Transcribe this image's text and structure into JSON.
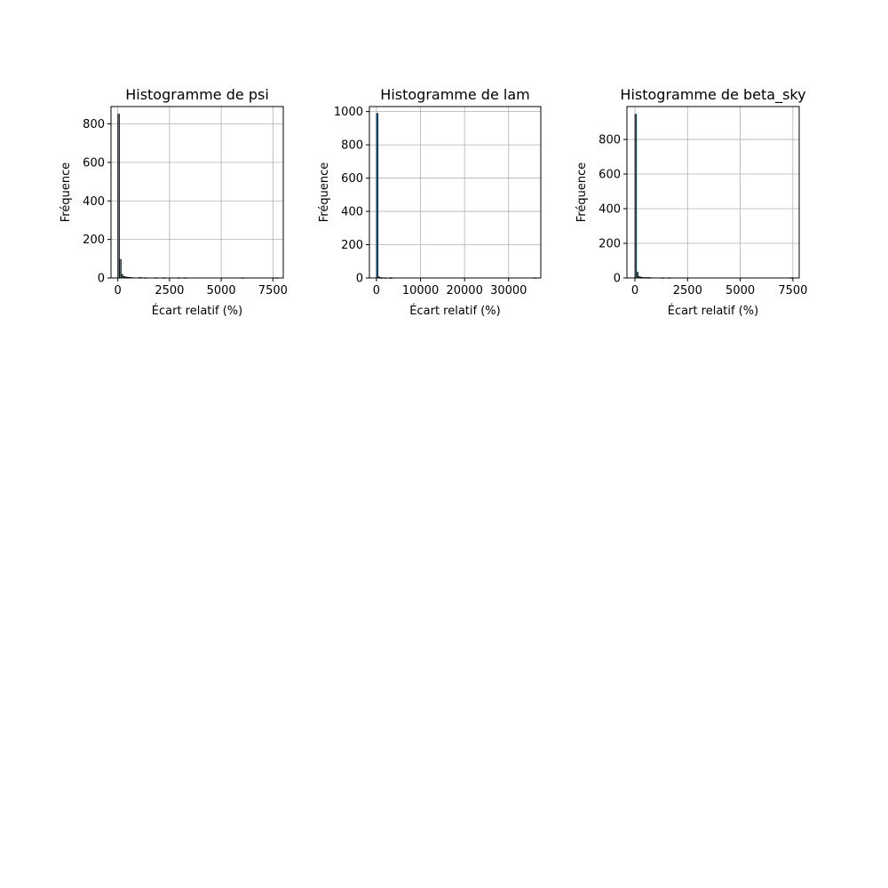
{
  "chart_data": [
    {
      "type": "bar",
      "title": "Histogramme de psi",
      "xlabel": "Écart relatif (%)",
      "ylabel": "Fréquence",
      "xlim": [
        -330,
        8000
      ],
      "ylim": [
        0,
        890
      ],
      "xticks": [
        0,
        2500,
        5000,
        7500
      ],
      "yticks": [
        0,
        200,
        400,
        600,
        800
      ],
      "grid": true,
      "bin_width": 80,
      "bins": [
        {
          "x": 0,
          "count": 850
        },
        {
          "x": 80,
          "count": 96
        },
        {
          "x": 160,
          "count": 18
        },
        {
          "x": 240,
          "count": 8
        },
        {
          "x": 320,
          "count": 5
        },
        {
          "x": 400,
          "count": 4
        },
        {
          "x": 480,
          "count": 3
        },
        {
          "x": 560,
          "count": 2
        },
        {
          "x": 640,
          "count": 2
        },
        {
          "x": 1000,
          "count": 2
        },
        {
          "x": 1100,
          "count": 2
        },
        {
          "x": 1300,
          "count": 1
        },
        {
          "x": 1800,
          "count": 1
        },
        {
          "x": 2200,
          "count": 1
        },
        {
          "x": 2900,
          "count": 1
        },
        {
          "x": 3200,
          "count": 1
        },
        {
          "x": 6000,
          "count": 1
        },
        {
          "x": 7650,
          "count": 1
        }
      ]
    },
    {
      "type": "bar",
      "title": "Histogramme de lam",
      "xlabel": "Écart relatif (%)",
      "ylabel": "Fréquence",
      "xlim": [
        -1600,
        37300
      ],
      "ylim": [
        0,
        1030
      ],
      "xticks": [
        0,
        10000,
        20000,
        30000
      ],
      "yticks": [
        0,
        200,
        400,
        600,
        800,
        1000
      ],
      "grid": true,
      "bin_width": 360,
      "bins": [
        {
          "x": 0,
          "count": 988
        },
        {
          "x": 360,
          "count": 6
        },
        {
          "x": 720,
          "count": 2
        },
        {
          "x": 1080,
          "count": 1
        },
        {
          "x": 1800,
          "count": 1
        },
        {
          "x": 2900,
          "count": 1
        },
        {
          "x": 3200,
          "count": 1
        },
        {
          "x": 35800,
          "count": 1
        }
      ]
    },
    {
      "type": "bar",
      "title": "Histogramme de beta_sky",
      "xlabel": "Écart relatif (%)",
      "ylabel": "Fréquence",
      "xlim": [
        -380,
        7800
      ],
      "ylim": [
        0,
        990
      ],
      "xticks": [
        0,
        2500,
        5000,
        7500
      ],
      "yticks": [
        0,
        200,
        400,
        600,
        800
      ],
      "grid": true,
      "bin_width": 75,
      "bins": [
        {
          "x": 0,
          "count": 945
        },
        {
          "x": 75,
          "count": 32
        },
        {
          "x": 150,
          "count": 8
        },
        {
          "x": 225,
          "count": 5
        },
        {
          "x": 300,
          "count": 3
        },
        {
          "x": 375,
          "count": 2
        },
        {
          "x": 450,
          "count": 2
        },
        {
          "x": 525,
          "count": 2
        },
        {
          "x": 600,
          "count": 2
        },
        {
          "x": 675,
          "count": 2
        },
        {
          "x": 1300,
          "count": 1
        },
        {
          "x": 1600,
          "count": 1
        },
        {
          "x": 7400,
          "count": 1
        }
      ]
    }
  ]
}
